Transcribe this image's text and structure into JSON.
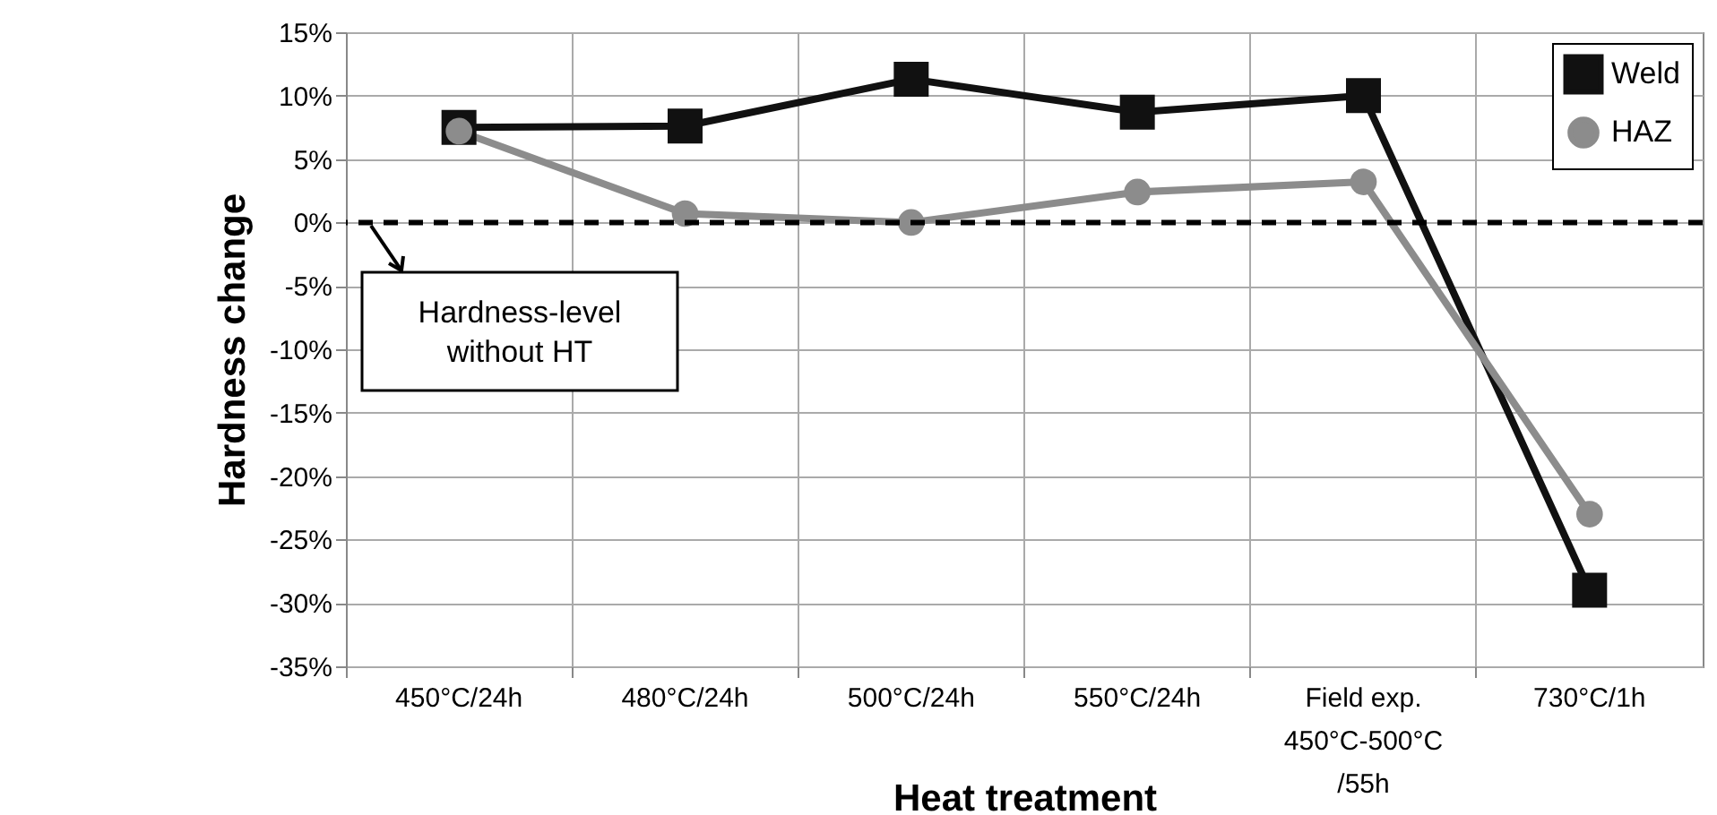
{
  "chart_data": {
    "type": "line",
    "xlabel": "Heat treatment",
    "ylabel": "Hardness change",
    "categories": [
      "450°C/24h",
      "480°C/24h",
      "500°C/24h",
      "550°C/24h",
      "Field exp.\n450°C-500°C\n/55h",
      "730°C/1h"
    ],
    "series": [
      {
        "name": "Weld",
        "color": "#111111",
        "marker": "square",
        "values": [
          7.5,
          7.6,
          11.3,
          8.7,
          10.0,
          -29.0
        ]
      },
      {
        "name": "HAZ",
        "color": "#8c8c8c",
        "marker": "circle",
        "values": [
          7.2,
          0.7,
          0.0,
          2.4,
          3.2,
          -23.0
        ]
      }
    ],
    "ylim": [
      -35,
      15
    ],
    "yticks": [
      {
        "value": -35,
        "label": "-35%"
      },
      {
        "value": -30,
        "label": "-30%"
      },
      {
        "value": -25,
        "label": "-25%"
      },
      {
        "value": -20,
        "label": "-20%"
      },
      {
        "value": -15,
        "label": "-15%"
      },
      {
        "value": -10,
        "label": "-10%"
      },
      {
        "value": -5,
        "label": "-5%"
      },
      {
        "value": 0,
        "label": "0%"
      },
      {
        "value": 5,
        "label": "5%"
      },
      {
        "value": 10,
        "label": "10%"
      },
      {
        "value": 15,
        "label": "15%"
      }
    ],
    "ref_lines": [
      {
        "axis": "y",
        "value": 0,
        "label": "Hardness-level\nwithout HT",
        "color": "#000000",
        "line_style": "dashed"
      }
    ],
    "grid": true,
    "legend": "top right",
    "line_style": "solid"
  }
}
